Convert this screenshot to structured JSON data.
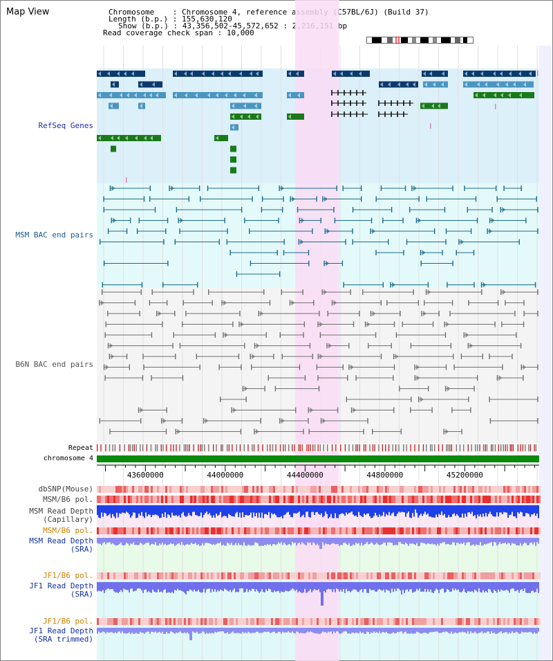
{
  "view_title": "Map View",
  "info": {
    "chromosome_label": "Chromosome",
    "chromosome_value": "Chromosome 4, reference assembly (C57BL/6J) (Build 37)",
    "length_label": "Length (b.p.)",
    "length_value": "155,630,120",
    "show_label": "Show (b.p.)",
    "show_value": "43,356,502-45,572,652 : 2,216,151 bp",
    "coverage_label": "Read coverage check span",
    "coverage_value": "10,000"
  },
  "tracks": {
    "refseq": "RefSeq Genes",
    "msm_bac": "MSM BAC end pairs",
    "b6n_bac": "B6N BAC end pairs",
    "repeat": "Repeat",
    "chromosome": "chromosome 4",
    "dbsnp": "dbSNP(Mouse)",
    "msm_pol": "MSM/B6 pol.",
    "msm_depth_cap_1": "MSM Read Depth",
    "msm_depth_cap_2": "(Capillary)",
    "msm_pol_2": "MSM/B6 pol.",
    "msm_depth_sra_1": "MSM Read Depth",
    "msm_depth_sra_2": "(SRA)",
    "jf1_pol": "JF1/B6 pol.",
    "jf1_depth_sra_1": "JF1 Read Depth",
    "jf1_depth_sra_2": "(SRA)",
    "jf1_pol_2": "JF1/B6 pol.",
    "jf1_depth_trim_1": "JF1 Read Depth",
    "jf1_depth_trim_2": "(SRA trimmed)"
  },
  "axis": {
    "start_bp": 43356502,
    "end_bp": 45572652,
    "tick_labels": [
      43600000,
      44000000,
      44400000,
      44800000,
      45200000
    ],
    "tick_label_text": [
      "43600000",
      "44000000",
      "44400000",
      "44800000",
      "45200000"
    ],
    "highlight_start_bp": 44350000,
    "highlight_end_bp": 44570000
  },
  "colors": {
    "refseq_bg": "#dcf0fa",
    "msm_bac_bg": "#e4fafa",
    "b6n_bac_bg": "#f4f4f4",
    "highlight": "#fadcf4",
    "gene_dark": "#0a3a6e",
    "gene_mid": "#4a96c0",
    "gene_green": "#1a7a1a",
    "chromosome_bar": "#0a8a0a",
    "bac_msm": "#1a6a8a",
    "bac_b6n": "#707070"
  }
}
